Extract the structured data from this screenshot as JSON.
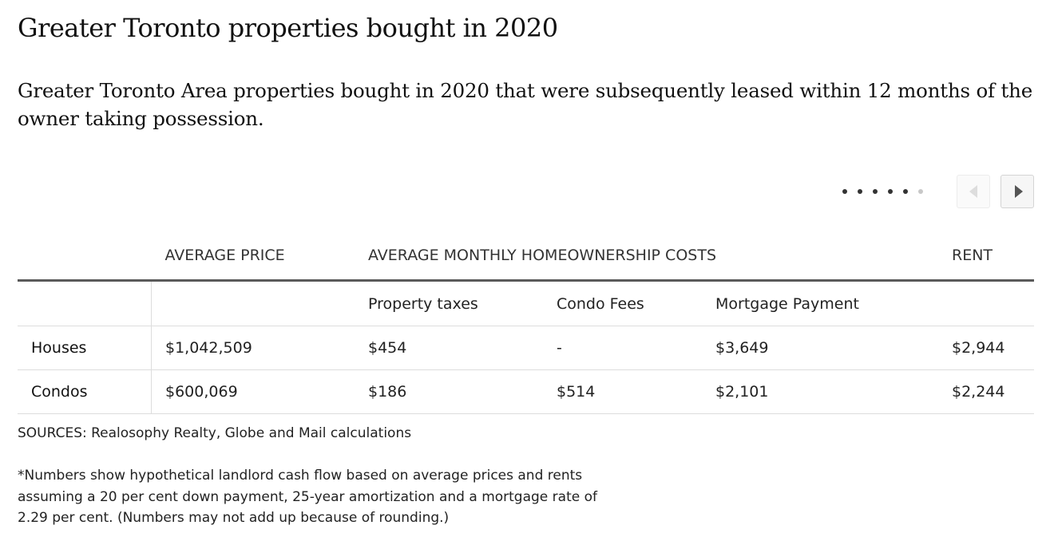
{
  "title": "Greater Toronto properties bought in 2020",
  "subtitle": "Greater Toronto Area properties bought in 2020 that were subsequently leased within 12 months of the owner taking possession.",
  "pager": {
    "dots_total": 6,
    "active_dots": 5,
    "prev_icon": "chevron-left-icon",
    "next_icon": "chevron-right-icon"
  },
  "table": {
    "group_headers": {
      "average_price": "AVERAGE PRICE",
      "homeownership_costs": "AVERAGE MONTHLY HOMEOWNERSHIP COSTS",
      "rent": "RENT"
    },
    "sub_headers": {
      "property_taxes": "Property taxes",
      "condo_fees": "Condo Fees",
      "mortgage_payment": "Mortgage Payment"
    },
    "rows": [
      {
        "label": "Houses",
        "average_price": "$1,042,509",
        "property_taxes": "$454",
        "condo_fees": "-",
        "mortgage_payment": "$3,649",
        "rent": "$2,944"
      },
      {
        "label": "Condos",
        "average_price": "$600,069",
        "property_taxes": "$186",
        "condo_fees": "$514",
        "mortgage_payment": "$2,101",
        "rent": "$2,244"
      }
    ]
  },
  "sources": "SOURCES: Realosophy Realty, Globe and Mail calculations",
  "note": "*Numbers show hypothetical landlord cash flow based on average prices and rents assuming a 20 per cent down payment, 25-year amortization and a mortgage rate of 2.29 per cent. (Numbers may not add up because of rounding.)",
  "colors": {
    "text": "#111111",
    "rule": "#5a5a5a",
    "divider": "#dddddd"
  }
}
